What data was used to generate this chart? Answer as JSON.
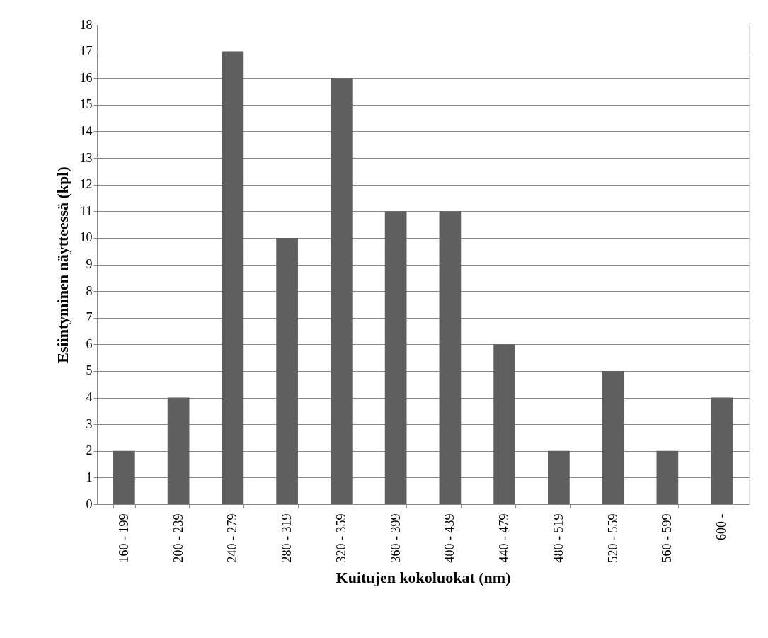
{
  "chart_data": {
    "type": "bar",
    "xlabel": "Kuitujen kokoluokat (nm)",
    "ylabel": "Esiintyminen näytteessä (kpl)",
    "categories": [
      "160 - 199",
      "200 - 239",
      "240 - 279",
      "280 - 319",
      "320 - 359",
      "360 - 399",
      "400 - 439",
      "440 - 479",
      "480 - 519",
      "520 - 559",
      "560 - 599",
      "600 -"
    ],
    "values": [
      2,
      4,
      17,
      10,
      16,
      11,
      11,
      6,
      2,
      5,
      2,
      4
    ],
    "color": "#5f5f5f",
    "ylim": [
      0,
      18
    ],
    "yticks": [
      0,
      1,
      2,
      3,
      4,
      5,
      6,
      7,
      8,
      9,
      10,
      11,
      12,
      13,
      14,
      15,
      16,
      17,
      18
    ],
    "grid": "y"
  }
}
